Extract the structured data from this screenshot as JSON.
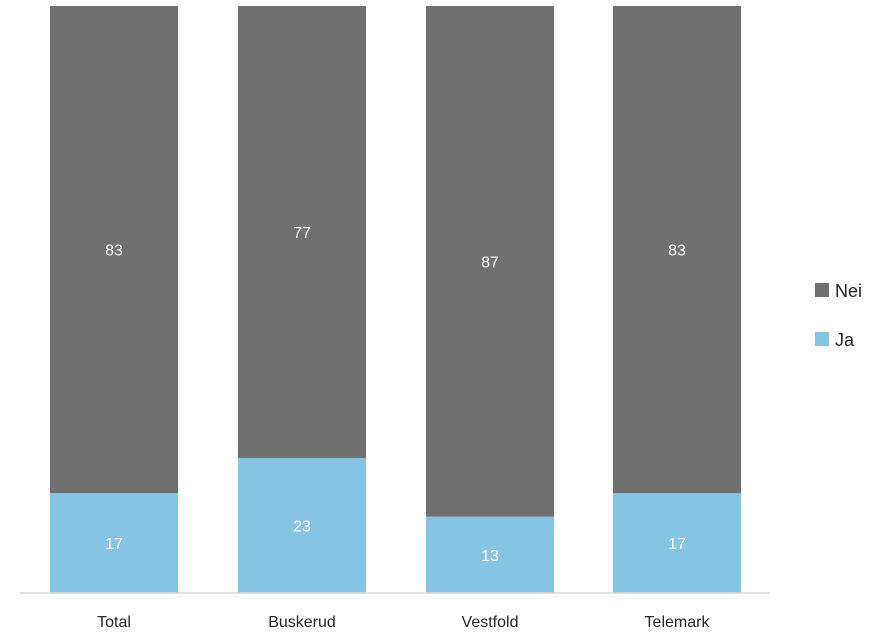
{
  "chart_data": {
    "type": "bar",
    "stacked": true,
    "categories": [
      "Total",
      "Buskerud",
      "Vestfold",
      "Telemark"
    ],
    "series": [
      {
        "name": "Ja",
        "values": [
          17,
          23,
          13,
          17
        ],
        "color": "#85c5e3"
      },
      {
        "name": "Nei",
        "values": [
          83,
          77,
          87,
          83
        ],
        "color": "#707070"
      }
    ],
    "legend_order": [
      "Nei",
      "Ja"
    ],
    "legend_position": "right",
    "ylim": [
      0,
      100
    ],
    "grid": false,
    "title": "",
    "xlabel": "",
    "ylabel": ""
  }
}
